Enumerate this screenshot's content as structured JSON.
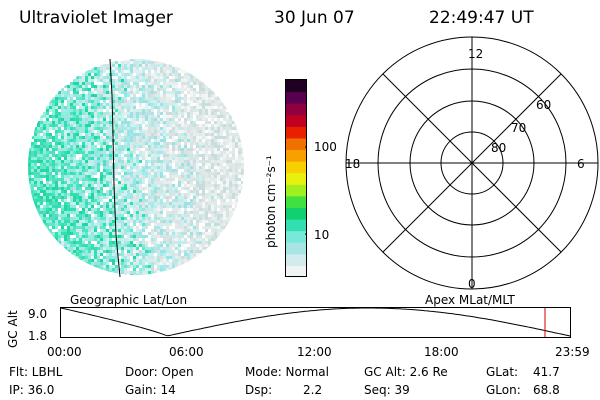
{
  "header": {
    "title": "Ultraviolet Imager",
    "date": "30 Jun 07",
    "time": "22:49:47 UT"
  },
  "colorbar": {
    "unit_label": "photon cm⁻²s⁻¹",
    "ticks": [
      "100",
      "10"
    ],
    "colors": [
      "#f0f4f4",
      "#d0ecec",
      "#a8e4e4",
      "#78e8d8",
      "#30e0b0",
      "#10d070",
      "#40e040",
      "#a0f020",
      "#e8f010",
      "#f8d000",
      "#f8a000",
      "#f07000",
      "#e82000",
      "#c00020",
      "#900040",
      "#580050",
      "#200020"
    ]
  },
  "imager": {
    "labels": {
      "geo": "Geographic Lat/Lon",
      "apex": "Apex MLat/MLT"
    }
  },
  "polar_grid": {
    "mlt_labels": {
      "top": "12",
      "left": "18",
      "right": "6",
      "bottom": "0"
    },
    "lat_labels": [
      "80",
      "70",
      "60"
    ]
  },
  "timeline": {
    "axis_label": "GC Alt",
    "y_ticks": [
      "9.0",
      "1.8"
    ],
    "x_ticks": [
      "00:00",
      "06:00",
      "12:00",
      "18:00",
      "23:59"
    ],
    "marker_color": "#d00000"
  },
  "footer": {
    "flt": "Flt: LBHL",
    "ip": "IP: 36.0",
    "door": "Door: Open",
    "gain": "Gain: 14",
    "mode": "Mode: Normal",
    "dsp_label": "Dsp:",
    "dsp_value": "2.2",
    "gcalt": "GC Alt: 2.6 Re",
    "seq": "Seq: 39",
    "glat_label": "GLat:",
    "glat_value": "41.7",
    "glon_label": "GLon:",
    "glon_value": "68.8"
  }
}
